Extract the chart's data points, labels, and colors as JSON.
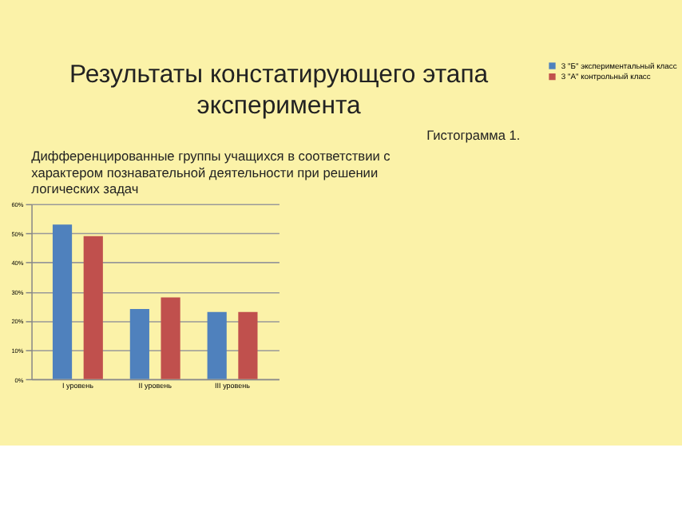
{
  "chart_data": {
    "type": "bar",
    "title": "Результаты констатирующего этапа\nэксперимента",
    "subtitle": "Дифференцированные группы учащихся в соответствии с\nхарактером познавательной деятельности при решении\nлогических задач",
    "annotations": [
      "Гистограмма 1."
    ],
    "categories": [
      "I уровень",
      "II уровень",
      "III уровень"
    ],
    "series": [
      {
        "name": "3 \"Б\" экспериментальный класс",
        "color": "#4f81bd",
        "values": [
          53,
          24,
          23
        ]
      },
      {
        "name": "3 \"А\" контрольный класс",
        "color": "#c0504d",
        "values": [
          49,
          28,
          23
        ]
      }
    ],
    "ylim": [
      0,
      60
    ],
    "yticks": [
      {
        "value": 0,
        "label": "0%"
      },
      {
        "value": 10,
        "label": "10%"
      },
      {
        "value": 20,
        "label": "20%"
      },
      {
        "value": 30,
        "label": "30%"
      },
      {
        "value": 40,
        "label": "40%"
      },
      {
        "value": 50,
        "label": "50%"
      },
      {
        "value": 60,
        "label": "60%"
      }
    ],
    "grid": "y",
    "legend": "right"
  }
}
